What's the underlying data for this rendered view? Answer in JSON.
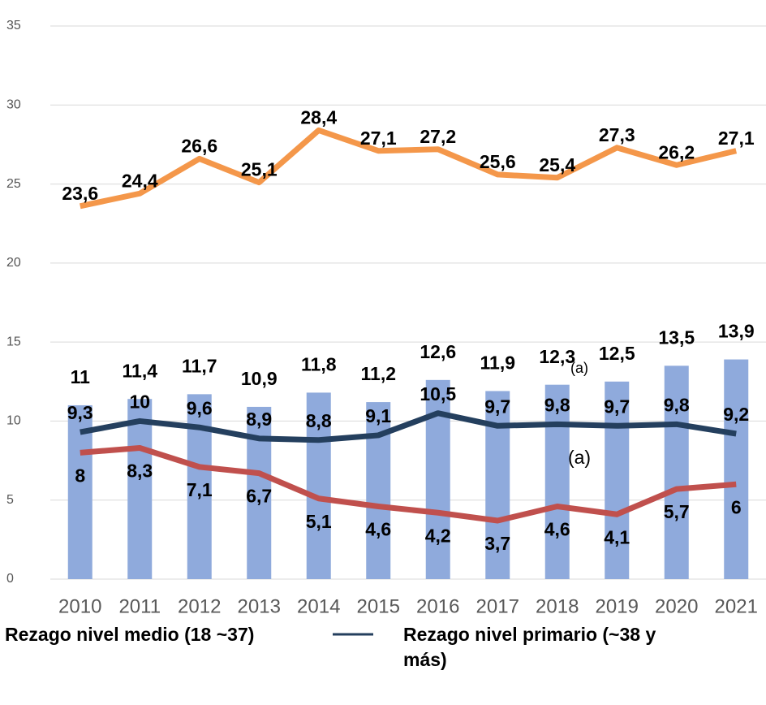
{
  "chart_data": {
    "type": "bar",
    "categories": [
      "2010",
      "2011",
      "2012",
      "2013",
      "2014",
      "2015",
      "2016",
      "2017",
      "2018",
      "2019",
      "2020",
      "2021"
    ],
    "series": [
      {
        "type": "bar",
        "color": "#8faadc",
        "values": [
          11,
          11.4,
          11.7,
          10.9,
          11.8,
          11.2,
          12.6,
          11.9,
          12.3,
          12.5,
          13.5,
          13.9
        ],
        "value_labels": [
          "11",
          "11,4",
          "11,7",
          "10,9",
          "11,8",
          "11,2",
          "12,6",
          "11,9",
          "12,3",
          "12,5",
          "13,5",
          "13,9"
        ]
      },
      {
        "type": "line",
        "color": "#f4974a",
        "values": [
          23.6,
          24.4,
          26.6,
          25.1,
          28.4,
          27.1,
          27.2,
          25.6,
          25.4,
          27.3,
          26.2,
          27.1
        ],
        "value_labels": [
          "23,6",
          "24,4",
          "26,6",
          "25,1",
          "28,4",
          "27,1",
          "27,2",
          "25,6",
          "25,4",
          "27,3",
          "26,2",
          "27,1"
        ]
      },
      {
        "type": "line",
        "color": "#c0504d",
        "name": "Rezago nivel medio (18 ~37)",
        "values": [
          8,
          8.3,
          7.1,
          6.7,
          5.1,
          4.6,
          4.2,
          3.7,
          4.6,
          4.1,
          5.7,
          6
        ],
        "value_labels": [
          "8",
          "8,3",
          "7,1",
          "6,7",
          "5,1",
          "4,6",
          "4,2",
          "3,7",
          "4,6",
          "4,1",
          "5,7",
          "6"
        ]
      },
      {
        "type": "line",
        "color": "#243f5e",
        "name": "Rezago nivel primario (~38 y más)",
        "values": [
          9.3,
          10,
          9.6,
          8.9,
          8.8,
          9.1,
          10.5,
          9.7,
          9.8,
          9.7,
          9.8,
          9.2
        ],
        "value_labels": [
          "9,3",
          "10",
          "9,6",
          "8,9",
          "8,8",
          "9,1",
          "10,5",
          "9,7",
          "9,8",
          "9,7",
          "9,8",
          "9,2"
        ]
      }
    ],
    "annotations": [
      "(a)",
      "(a)"
    ],
    "ylim": [
      0,
      35
    ],
    "yticks": [
      0,
      5,
      10,
      15,
      20,
      25,
      30,
      35
    ],
    "grid": true
  }
}
